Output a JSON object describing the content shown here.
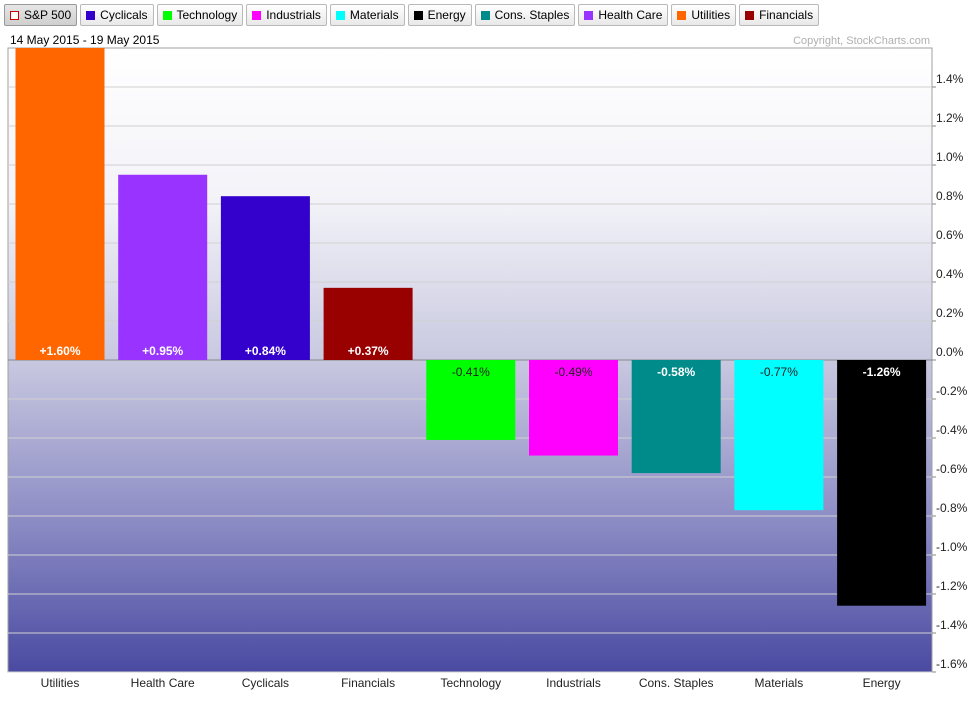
{
  "legend": [
    {
      "label": "S&P 500",
      "color": "#cc0000",
      "style": "hollow",
      "active": true
    },
    {
      "label": "Cyclicals",
      "color": "#3300cc"
    },
    {
      "label": "Technology",
      "color": "#00ff00"
    },
    {
      "label": "Industrials",
      "color": "#ff00ff"
    },
    {
      "label": "Materials",
      "color": "#00ffff"
    },
    {
      "label": "Energy",
      "color": "#000000"
    },
    {
      "label": "Cons. Staples",
      "color": "#008b8b"
    },
    {
      "label": "Health Care",
      "color": "#9933ff"
    },
    {
      "label": "Utilities",
      "color": "#ff6600"
    },
    {
      "label": "Financials",
      "color": "#990000"
    }
  ],
  "date_range": "14 May 2015 - 19 May 2015",
  "copyright": "Copyright, StockCharts.com",
  "chart_data": {
    "type": "bar",
    "categories": [
      "Utilities",
      "Health Care",
      "Cyclicals",
      "Financials",
      "Technology",
      "Industrials",
      "Cons. Staples",
      "Materials",
      "Energy"
    ],
    "values": [
      1.6,
      0.95,
      0.84,
      0.37,
      -0.41,
      -0.49,
      -0.58,
      -0.77,
      -1.26
    ],
    "data_labels": [
      "+1.60%",
      "+0.95%",
      "+0.84%",
      "+0.37%",
      "-0.41%",
      "-0.49%",
      "-0.58%",
      "-0.77%",
      "-1.26%"
    ],
    "colors": [
      "#ff6600",
      "#9933ff",
      "#3300cc",
      "#990000",
      "#00ff00",
      "#ff00ff",
      "#008b8b",
      "#00ffff",
      "#000000"
    ],
    "yticks": [
      "1.4%",
      "1.2%",
      "1.0%",
      "0.8%",
      "0.6%",
      "0.4%",
      "0.2%",
      "0.0%",
      "-0.2%",
      "-0.4%",
      "-0.6%",
      "-0.8%",
      "-1.0%",
      "-1.2%",
      "-1.4%",
      "-1.6%"
    ],
    "ytick_values": [
      1.4,
      1.2,
      1.0,
      0.8,
      0.6,
      0.4,
      0.2,
      0.0,
      -0.2,
      -0.4,
      -0.6,
      -0.8,
      -1.0,
      -1.2,
      -1.4,
      -1.6
    ],
    "ylim": [
      -1.6,
      1.6
    ],
    "grid": true,
    "axis_side": "right"
  }
}
